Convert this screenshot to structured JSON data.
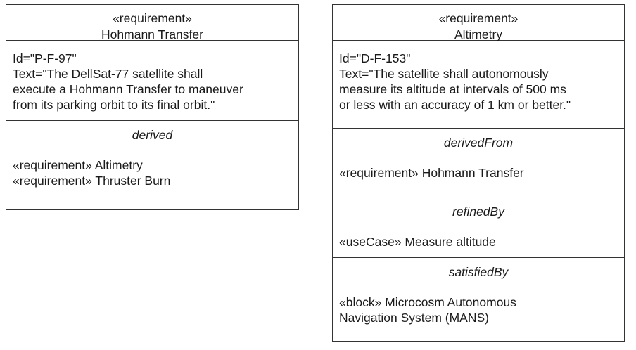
{
  "requirements": [
    {
      "stereotype": "«requirement»",
      "name": "Hohmann Transfer",
      "id_text": "Id=\"P-F-97\"",
      "text_lines": [
        "Text=\"The DellSat-77 satellite shall",
        "execute a Hohmann Transfer to maneuver",
        "from its parking orbit to its final orbit.\""
      ],
      "sections": [
        {
          "title": "derived",
          "items": [
            "«requirement» Altimetry",
            "«requirement» Thruster Burn"
          ]
        }
      ]
    },
    {
      "stereotype": "«requirement»",
      "name": "Altimetry",
      "id_text": "Id=\"D-F-153\"",
      "text_lines": [
        "Text=\"The satellite shall autonomously",
        "measure its altitude at intervals of 500 ms",
        "or less with an accuracy of 1 km or better.\""
      ],
      "sections": [
        {
          "title": "derivedFrom",
          "items": [
            "«requirement» Hohmann Transfer"
          ]
        },
        {
          "title": "refinedBy",
          "items": [
            "«useCase» Measure altitude"
          ]
        },
        {
          "title": "satisfiedBy",
          "items": [
            "«block» Microcosm Autonomous",
            "Navigation System (MANS)"
          ]
        }
      ]
    }
  ]
}
